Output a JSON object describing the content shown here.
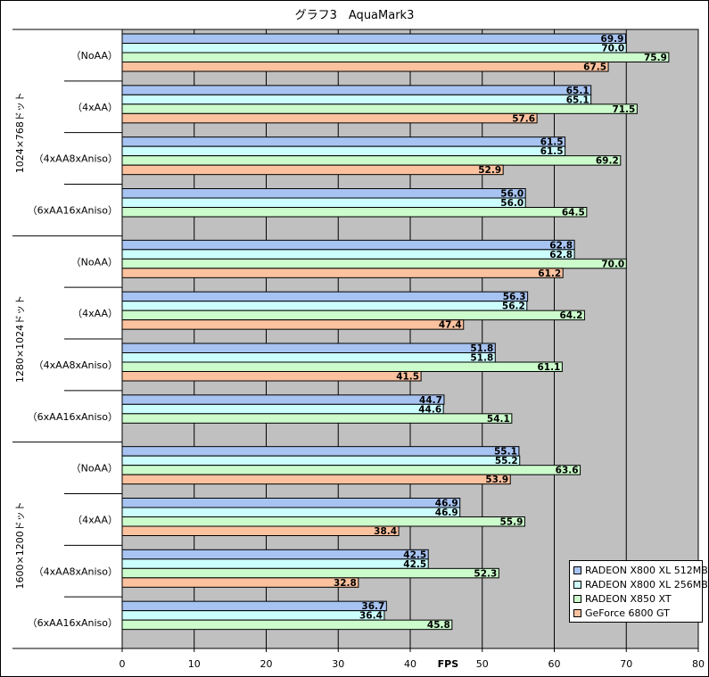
{
  "chart_data": {
    "type": "bar",
    "orientation": "horizontal",
    "title": "グラフ3　AquaMark3",
    "xlabel": "FPS",
    "xlim": [
      0,
      80
    ],
    "xticks": [
      0,
      10,
      20,
      30,
      40,
      50,
      60,
      70,
      80
    ],
    "grid": true,
    "legend_position": "bottom-right",
    "groups": [
      {
        "name": "1024×768ドット",
        "categories": [
          {
            "label": "（NoAA）",
            "values": [
              69.9,
              70.0,
              75.9,
              67.5
            ]
          },
          {
            "label": "（4xAA）",
            "values": [
              65.1,
              65.1,
              71.5,
              57.6
            ]
          },
          {
            "label": "（4xAA8xAniso）",
            "values": [
              61.5,
              61.5,
              69.2,
              52.9
            ]
          },
          {
            "label": "（6xAA16xAniso）",
            "values": [
              56.0,
              56.0,
              64.5,
              null
            ]
          }
        ]
      },
      {
        "name": "1280×1024ドット",
        "categories": [
          {
            "label": "（NoAA）",
            "values": [
              62.8,
              62.8,
              70.0,
              61.2
            ]
          },
          {
            "label": "（4xAA）",
            "values": [
              56.3,
              56.2,
              64.2,
              47.4
            ]
          },
          {
            "label": "（4xAA8xAniso）",
            "values": [
              51.8,
              51.8,
              61.1,
              41.5
            ]
          },
          {
            "label": "（6xAA16xAniso）",
            "values": [
              44.7,
              44.6,
              54.1,
              null
            ]
          }
        ]
      },
      {
        "name": "1600×1200ドット",
        "categories": [
          {
            "label": "（NoAA）",
            "values": [
              55.1,
              55.2,
              63.6,
              53.9
            ]
          },
          {
            "label": "（4xAA）",
            "values": [
              46.9,
              46.9,
              55.9,
              38.4
            ]
          },
          {
            "label": "（4xAA8xAniso）",
            "values": [
              42.5,
              42.5,
              52.3,
              32.8
            ]
          },
          {
            "label": "（6xAA16xAniso）",
            "values": [
              36.7,
              36.4,
              45.8,
              null
            ]
          }
        ]
      }
    ],
    "series": [
      {
        "name": "RADEON X800 XL 512MB",
        "color": "#a7c3f2"
      },
      {
        "name": "RADEON X800 XL 256MB",
        "color": "#ccfefe"
      },
      {
        "name": "RADEON X850 XT",
        "color": "#ccfccc"
      },
      {
        "name": "GeForce 6800 GT",
        "color": "#fcc29f"
      }
    ],
    "plot_background": "#c0c0c0"
  }
}
